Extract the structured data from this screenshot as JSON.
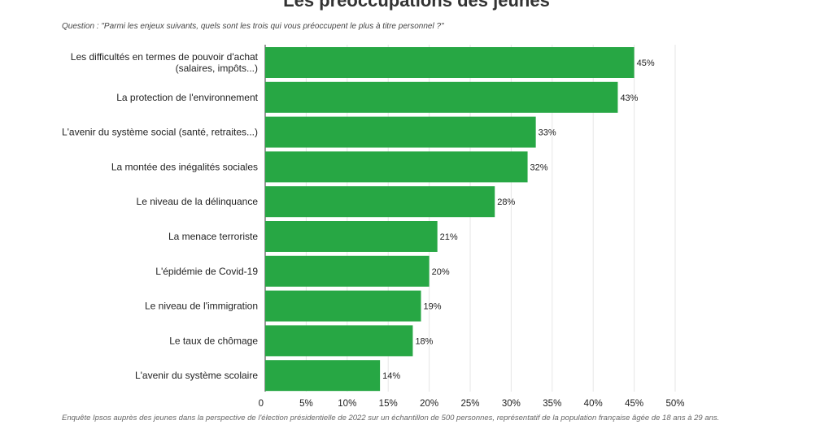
{
  "title": "Les préoccupations des jeunes",
  "question": "Question : \"Parmi les enjeux suivants, quels sont les trois qui vous préoccupent le plus à titre personnel ?\"",
  "source": "Enquête Ipsos auprès des jeunes dans la perspective de l'élection présidentielle de 2022 sur un échantillon de 500 personnes, représentatif de la population française âgée   de 18 ans à 29 ans.",
  "colors": {
    "bar": "#27a744",
    "grid": "#e6e6e6",
    "axis": "#333333"
  },
  "chart_data": {
    "type": "bar",
    "orientation": "horizontal",
    "categories": [
      [
        "Les difficultés en termes de pouvoir d'achat",
        "(salaires, impôts...)"
      ],
      [
        "La protection de l'environnement"
      ],
      [
        "L'avenir du système social (santé, retraites...)"
      ],
      [
        "La montée des inégalités sociales"
      ],
      [
        "Le niveau de la délinquance"
      ],
      [
        "La menace terroriste"
      ],
      [
        "L'épidémie de Covid-19"
      ],
      [
        "Le niveau de l'immigration"
      ],
      [
        "Le taux de chômage"
      ],
      [
        "L'avenir du système scolaire"
      ]
    ],
    "values": [
      45,
      43,
      33,
      32,
      28,
      21,
      20,
      19,
      18,
      14
    ],
    "value_labels": [
      "45%",
      "43%",
      "33%",
      "32%",
      "28%",
      "21%",
      "20%",
      "19%",
      "18%",
      "14%"
    ],
    "xlim": [
      0,
      50
    ],
    "xticks": [
      0,
      5,
      10,
      15,
      20,
      25,
      30,
      35,
      40,
      45,
      50
    ],
    "xtick_labels": [
      "0",
      "5%",
      "10%",
      "15%",
      "20%",
      "25%",
      "30%",
      "35%",
      "40%",
      "45%",
      "50%"
    ],
    "grid": true,
    "legend": "none"
  }
}
